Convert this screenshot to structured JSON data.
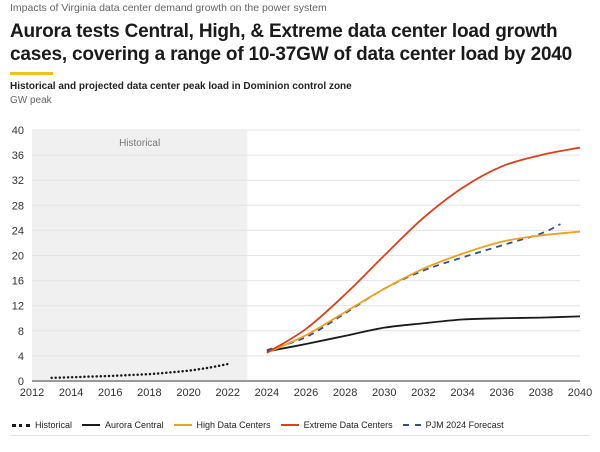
{
  "header": {
    "kicker": "Impacts of Virginia data center demand growth on the power system",
    "title": "Aurora tests Central, High, & Extreme data center load growth cases, covering a range of 10-37GW of data center load by 2040",
    "subtitle": "Historical and projected data center peak load in Dominion control zone",
    "unit": "GW peak",
    "accent_color": "#f4c01e"
  },
  "chart_data": {
    "type": "line",
    "title": "Historical and projected data center peak load in Dominion control zone",
    "xlabel": "",
    "ylabel": "GW peak",
    "xlim": [
      2012,
      2040
    ],
    "ylim": [
      0,
      40
    ],
    "x_ticks": [
      2012,
      2014,
      2016,
      2018,
      2020,
      2022,
      2024,
      2026,
      2028,
      2030,
      2032,
      2034,
      2036,
      2038,
      2040
    ],
    "y_ticks": [
      0,
      4,
      8,
      12,
      16,
      20,
      24,
      28,
      32,
      36,
      40
    ],
    "grid": "horizontal",
    "legend_position": "bottom",
    "annotation": {
      "label": "Historical",
      "x_range": [
        2012,
        2023
      ],
      "fill": "#f0f0f0"
    },
    "series": [
      {
        "name": "Historical",
        "color": "#1a1a1a",
        "style": "dotted",
        "x": [
          2013,
          2014,
          2015,
          2016,
          2017,
          2018,
          2019,
          2020,
          2021,
          2022
        ],
        "values": [
          0.5,
          0.6,
          0.7,
          0.8,
          0.95,
          1.1,
          1.35,
          1.65,
          2.1,
          2.7
        ]
      },
      {
        "name": "Aurora Central",
        "color": "#1a1a1a",
        "style": "solid",
        "x": [
          2024,
          2026,
          2028,
          2030,
          2032,
          2034,
          2036,
          2038,
          2040
        ],
        "values": [
          4.7,
          5.9,
          7.2,
          8.5,
          9.2,
          9.8,
          10.0,
          10.1,
          10.3
        ]
      },
      {
        "name": "High Data Centers",
        "color": "#f0a020",
        "style": "solid",
        "x": [
          2024,
          2026,
          2028,
          2030,
          2032,
          2034,
          2036,
          2038,
          2040
        ],
        "values": [
          4.5,
          7.3,
          11.0,
          14.7,
          17.9,
          20.3,
          22.2,
          23.2,
          23.8
        ]
      },
      {
        "name": "Extreme Data Centers",
        "color": "#d9401c",
        "style": "solid",
        "x": [
          2024,
          2026,
          2028,
          2030,
          2032,
          2034,
          2036,
          2038,
          2040
        ],
        "values": [
          4.5,
          8.3,
          13.8,
          20.0,
          26.0,
          30.8,
          34.2,
          36.0,
          37.2
        ]
      },
      {
        "name": "PJM 2024 Forecast",
        "color": "#2f4f8f",
        "style": "dashed",
        "x": [
          2024,
          2026,
          2028,
          2030,
          2032,
          2034,
          2036,
          2038,
          2039
        ],
        "values": [
          4.9,
          7.0,
          10.8,
          14.7,
          17.6,
          19.7,
          21.6,
          23.5,
          25.0
        ]
      }
    ]
  }
}
